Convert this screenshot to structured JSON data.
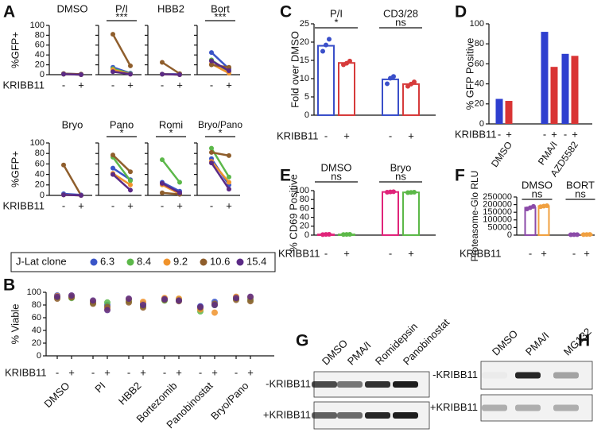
{
  "chart_data": [
    {
      "panel": "A",
      "type": "paired-line",
      "ylabel": "%GFP+",
      "xlabel": "KRIBB11",
      "categories": [
        "-",
        "+"
      ],
      "ylim": [
        0,
        100
      ],
      "yticks": [
        0,
        20,
        40,
        60,
        80,
        100
      ],
      "legend_title": "J-Lat clone",
      "series": [
        {
          "name": "6.3",
          "color": "#3a55c8"
        },
        {
          "name": "8.4",
          "color": "#5cb84a"
        },
        {
          "name": "9.2",
          "color": "#f0932b"
        },
        {
          "name": "10.6",
          "color": "#8f5e2c"
        },
        {
          "name": "15.4",
          "color": "#5b2a86"
        }
      ],
      "panels": [
        {
          "title": "DMSO",
          "values": [
            [
              2,
              1
            ],
            [
              1,
              0
            ],
            [
              1,
              0
            ],
            [
              2,
              1
            ],
            [
              1,
              0
            ]
          ]
        },
        {
          "title": "P/I",
          "significance": "***",
          "values": [
            [
              15,
              3
            ],
            [
              12,
              2
            ],
            [
              10,
              1
            ],
            [
              82,
              18
            ],
            [
              6,
              1
            ]
          ]
        },
        {
          "title": "HBB2",
          "values": [
            [
              1,
              1
            ],
            [
              1,
              0
            ],
            [
              1,
              0
            ],
            [
              25,
              2
            ],
            [
              1,
              0
            ]
          ]
        },
        {
          "title": "Bort",
          "significance": "***",
          "values": [
            [
              45,
              12
            ],
            [
              30,
              5
            ],
            [
              22,
              3
            ],
            [
              20,
              15
            ],
            [
              28,
              8
            ]
          ]
        },
        {
          "title": "Bryo",
          "values": [
            [
              3,
              1
            ],
            [
              1,
              0
            ],
            [
              1,
              0
            ],
            [
              58,
              0
            ],
            [
              1,
              0
            ]
          ]
        },
        {
          "title": "Pano",
          "significance": "*",
          "values": [
            [
              52,
              30
            ],
            [
              73,
              28
            ],
            [
              42,
              20
            ],
            [
              77,
              45
            ],
            [
              40,
              10
            ]
          ]
        },
        {
          "title": "Romi",
          "significance": "*",
          "values": [
            [
              25,
              8
            ],
            [
              68,
              25
            ],
            [
              20,
              3
            ],
            [
              5,
              2
            ],
            [
              23,
              5
            ]
          ]
        },
        {
          "title": "Bryo/Pano",
          "significance": "*",
          "values": [
            [
              70,
              20
            ],
            [
              90,
              35
            ],
            [
              65,
              25
            ],
            [
              82,
              76
            ],
            [
              62,
              12
            ]
          ]
        }
      ]
    },
    {
      "panel": "B",
      "type": "dot",
      "ylabel": "% Viable",
      "xlabel": "KRIBB11",
      "categories": [
        "DMSO",
        "PI",
        "HBB2",
        "Bortezomib",
        "Panobinostat",
        "Bryo/Pano"
      ],
      "subcategories": [
        "-",
        "+"
      ],
      "ylim": [
        0,
        100
      ],
      "yticks": [
        0,
        20,
        40,
        60,
        80,
        100
      ],
      "series": [
        {
          "color": "#3a55c8",
          "values": [
            [
              95,
              93
            ],
            [
              85,
              80
            ],
            [
              88,
              82
            ],
            [
              90,
              88
            ],
            [
              78,
              85
            ],
            [
              92,
              90
            ]
          ]
        },
        {
          "color": "#5cb84a",
          "values": [
            [
              92,
              91
            ],
            [
              83,
              84
            ],
            [
              86,
              78
            ],
            [
              87,
              89
            ],
            [
              70,
              80
            ],
            [
              90,
              88
            ]
          ]
        },
        {
          "color": "#f0932b",
          "values": [
            [
              94,
              94
            ],
            [
              86,
              74
            ],
            [
              89,
              85
            ],
            [
              91,
              90
            ],
            [
              73,
              68
            ],
            [
              93,
              92
            ]
          ]
        },
        {
          "color": "#8f5e2c",
          "values": [
            [
              90,
              92
            ],
            [
              82,
              77
            ],
            [
              84,
              76
            ],
            [
              88,
              86
            ],
            [
              76,
              82
            ],
            [
              88,
              86
            ]
          ]
        },
        {
          "color": "#5b2a86",
          "values": [
            [
              93,
              95
            ],
            [
              87,
              72
            ],
            [
              90,
              80
            ],
            [
              89,
              87
            ],
            [
              77,
              80
            ],
            [
              91,
              93
            ]
          ]
        }
      ]
    },
    {
      "panel": "C",
      "type": "bar",
      "ylabel": "Fold over DMSO",
      "xlabel": "KRIBB11",
      "categories": [
        "-",
        "+"
      ],
      "colors": [
        "#3a4fc9",
        "#d63b3b"
      ],
      "filled": false,
      "ylim": [
        0,
        25
      ],
      "yticks": [
        0,
        5,
        10,
        15,
        20,
        25
      ],
      "groups": [
        {
          "name": "P/I",
          "significance": "*",
          "values": [
            19,
            14.3
          ],
          "points": [
            [
              17.5,
              19.2,
              20.8
            ],
            [
              13.8,
              14.2,
              14.8
            ]
          ]
        },
        {
          "name": "CD3/28",
          "significance": "ns",
          "values": [
            9.8,
            8.5
          ],
          "points": [
            [
              8.6,
              10.1,
              10.6
            ],
            [
              7.9,
              8.5,
              9.1
            ]
          ]
        }
      ]
    },
    {
      "panel": "D",
      "type": "bar",
      "ylabel": "% GFP  Positive",
      "xlabel": "KRIBB11",
      "categories": [
        "-",
        "+"
      ],
      "colors": [
        "#2e3fcf",
        "#d93434"
      ],
      "filled": true,
      "ylim": [
        0,
        100
      ],
      "yticks": [
        0,
        20,
        40,
        60,
        80,
        100
      ],
      "groups": [
        {
          "name": "DMSO",
          "values": [
            25,
            23
          ]
        },
        {
          "name": "PMA/I",
          "values": [
            92,
            57
          ]
        },
        {
          "name": "AZD5582",
          "values": [
            70,
            68
          ]
        }
      ]
    },
    {
      "panel": "E",
      "type": "bar",
      "ylabel": "% CD69 Positive",
      "xlabel": "KRIBB11",
      "categories": [
        "-",
        "+"
      ],
      "colors": [
        "#e0247a",
        "#5cb848"
      ],
      "filled": false,
      "ylim": [
        0,
        100
      ],
      "yticks": [
        0,
        20,
        40,
        60,
        80,
        100
      ],
      "groups": [
        {
          "name": "DMSO",
          "significance": "ns",
          "values": [
            1.5,
            1.5
          ],
          "points": [
            [
              1.2,
              1.5,
              1.8
            ],
            [
              1.3,
              1.5,
              1.7
            ]
          ]
        },
        {
          "name": "Bryo",
          "significance": "ns",
          "values": [
            97,
            96
          ],
          "points": [
            [
              96.5,
              97,
              97.5
            ],
            [
              95.5,
              96,
              96.5
            ]
          ]
        }
      ]
    },
    {
      "panel": "F",
      "type": "bar",
      "ylabel": "Proteasome-Glo RLU",
      "xlabel": "KRIBB11",
      "categories": [
        "-",
        "+"
      ],
      "colors": [
        "#8b4aa8",
        "#f0a040"
      ],
      "filled": false,
      "ylim": [
        0,
        250000
      ],
      "yticks": [
        0,
        50000,
        100000,
        150000,
        200000,
        250000
      ],
      "groups": [
        {
          "name": "DMSO",
          "significance": "ns",
          "values": [
            180000,
            190000
          ],
          "points": [
            [
              172000,
              180000,
              188000
            ],
            [
              186000,
              190000,
              193000
            ]
          ]
        },
        {
          "name": "BORT",
          "significance": "ns",
          "values": [
            3000,
            4000
          ],
          "points": [
            [
              2500,
              3000,
              3500
            ],
            [
              3500,
              4000,
              4500
            ]
          ]
        }
      ]
    },
    {
      "panel": "G",
      "type": "blot",
      "lanes": [
        "DMSO",
        "PMA/I",
        "Romidepsin",
        "Panobinostat"
      ],
      "rows": [
        "-KRIBB11",
        "+KRIBB11"
      ]
    },
    {
      "panel": "H",
      "type": "blot",
      "lanes": [
        "DMSO",
        "PMA/I",
        "MG132"
      ],
      "rows": [
        "-KRIBB11",
        "+KRIBB11"
      ]
    }
  ]
}
